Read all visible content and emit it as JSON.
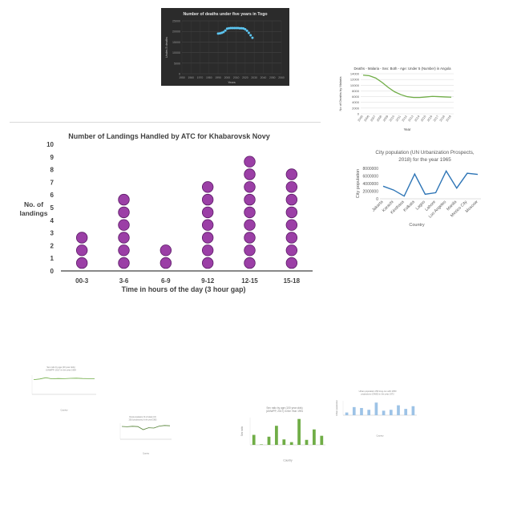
{
  "chart_data": [
    {
      "id": "togo",
      "type": "scatter",
      "title": "Number of deaths under five years in Togo",
      "xlabel": "Years",
      "ylabel": "Under-5 deaths",
      "xlim": [
        1950,
        2060
      ],
      "ylim": [
        0,
        25000
      ],
      "x_ticks": [
        "1950",
        "1960",
        "1970",
        "1980",
        "1990",
        "2000",
        "2010",
        "2020",
        "2030",
        "2040",
        "2050",
        "2060"
      ],
      "y_ticks": [
        "0",
        "5000",
        "10000",
        "15000",
        "20000",
        "25000"
      ],
      "grid": true,
      "background": "#2b2b2b",
      "marker_color": "#5cc6f2",
      "x": [
        1990,
        1992,
        1994,
        1996,
        1998,
        2000,
        2002,
        2004,
        2006,
        2008,
        2010,
        2012,
        2014,
        2016,
        2018,
        2020,
        2022,
        2024,
        2026,
        2028
      ],
      "values": [
        19000,
        19100,
        19300,
        19700,
        20400,
        21300,
        21500,
        21600,
        21600,
        21600,
        21600,
        21600,
        21500,
        21500,
        21400,
        21000,
        20300,
        19300,
        18200,
        17000
      ]
    },
    {
      "id": "angola",
      "type": "line",
      "title": "Deaths - Malaria - Sex: Both - Age: Under 5 (Number) in Angola",
      "xlabel": "Year",
      "ylabel": "No of Deaths by Malaria",
      "ylim": [
        0,
        14000
      ],
      "y_ticks": [
        "0",
        "2000",
        "4000",
        "6000",
        "8000",
        "10000",
        "12000",
        "14000"
      ],
      "categories": [
        "2005",
        "2006",
        "2007",
        "2008",
        "2009",
        "2010",
        "2011",
        "2012",
        "2013",
        "2014",
        "2015",
        "2016",
        "2017",
        "2018",
        "2019"
      ],
      "values": [
        13500,
        13300,
        12500,
        11000,
        9200,
        7700,
        6700,
        6000,
        5700,
        5700,
        5900,
        6100,
        6000,
        5900,
        5800
      ],
      "line_color": "#70ad47",
      "grid": true
    },
    {
      "id": "landings",
      "type": "dot",
      "title": "Number of Landings Handled by ATC for Khabarovsk Novy",
      "xlabel": "Time in hours of the day (3 hour gap)",
      "ylabel": "No. of landings",
      "ylim": [
        0,
        10
      ],
      "y_ticks": [
        "0",
        "1",
        "2",
        "3",
        "4",
        "5",
        "6",
        "7",
        "8",
        "9",
        "10"
      ],
      "categories": [
        "00-3",
        "3-6",
        "6-9",
        "9-12",
        "12-15",
        "15-18"
      ],
      "values": [
        3,
        6,
        2,
        7,
        9,
        8
      ],
      "marker_color": "#9b3fa6",
      "marker_stroke": "#5b1a66"
    },
    {
      "id": "city",
      "type": "line",
      "title": "City population (UN Urbanization Prospects, 2018) for the year 1965",
      "xlabel": "Country",
      "ylabel": "City population",
      "ylim": [
        0,
        8000000
      ],
      "y_ticks": [
        "0",
        "2000000",
        "4000000",
        "6000000",
        "8000000"
      ],
      "categories": [
        "Jakarta",
        "Karachi",
        "Kinshasa",
        "Kolkata",
        "Lagos",
        "Lahore",
        "Los Angeles",
        "Manila",
        "Mexico City",
        "Moscow"
      ],
      "values": [
        3300000,
        2300000,
        700000,
        6500000,
        1200000,
        1600000,
        7300000,
        2800000,
        6700000,
        6400000
      ],
      "line_color": "#2e75b6"
    },
    {
      "id": "sexratio1",
      "type": "line",
      "title": "Sex ratio by age (20 year olds) (UNWPP, 2017) in the year 1959",
      "xlabel": "Country",
      "ylabel": "",
      "ylim": [
        0,
        120
      ],
      "values": [
        92,
        96,
        104,
        97,
        99,
        98,
        100,
        101,
        99,
        98,
        97
      ],
      "line_color": "#70ad47"
    },
    {
      "id": "smalllower",
      "type": "line",
      "title": "Rural population (% of total) (UN 2016 projections) in the year 1983",
      "xlabel": "Country",
      "ylabel": "",
      "ylim": [
        0,
        100
      ],
      "values": [
        80,
        78,
        81,
        79,
        60,
        72,
        70,
        82,
        86,
        84
      ],
      "line_color": "#548235"
    },
    {
      "id": "sexratio2",
      "type": "bar",
      "title": "Sex ratio by age (100 year olds) (UNWPP, 2017) in the Year 1991",
      "xlabel": "Country",
      "ylabel": "Sex ratio",
      "ylim": [
        0,
        60
      ],
      "values": [
        22,
        1,
        18,
        42,
        12,
        6,
        57,
        11,
        34,
        20
      ],
      "bar_color": "#70ad47"
    },
    {
      "id": "urban",
      "type": "bar",
      "title": "Urban population 353 long-run with 2050 projections (OWID) in the year 1972",
      "xlabel": "Country",
      "ylabel": "Urban population",
      "ylim": [
        0,
        16000000
      ],
      "values": [
        3000000,
        9000000,
        8000000,
        6000000,
        14000000,
        5000000,
        6000000,
        11000000,
        7000000,
        10000000
      ],
      "bar_color": "#9dc3e6"
    }
  ]
}
